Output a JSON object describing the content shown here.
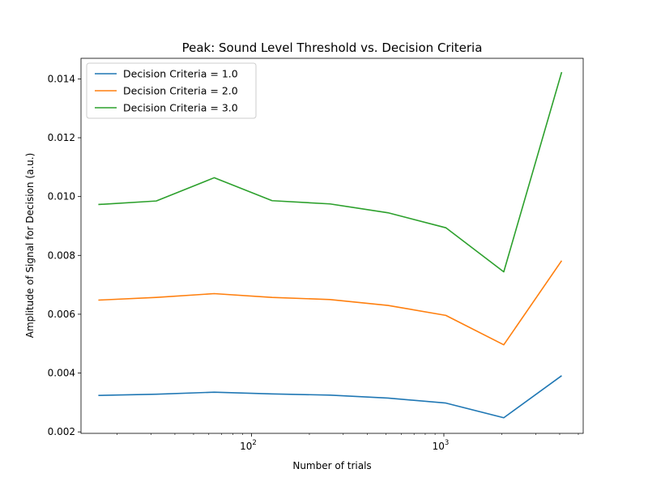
{
  "chart_data": {
    "type": "line",
    "title": "Peak: Sound Level Threshold vs. Decision Criteria",
    "xlabel": "Number of trials",
    "ylabel": "Amplitude of Signal for Decision (a.u.)",
    "xscale": "log",
    "xlim": [
      13,
      5300
    ],
    "ylim": [
      0.00195,
      0.0147
    ],
    "x": [
      16,
      32,
      64,
      128,
      256,
      512,
      1024,
      2048,
      4096
    ],
    "x_ticks": [
      {
        "value": 100,
        "base": "10",
        "exp": "2"
      },
      {
        "value": 1000,
        "base": "10",
        "exp": "3"
      }
    ],
    "y_ticks": [
      0.002,
      0.004,
      0.006,
      0.008,
      0.01,
      0.012,
      0.014
    ],
    "y_tick_labels": [
      "0.002",
      "0.004",
      "0.006",
      "0.008",
      "0.010",
      "0.012",
      "0.014"
    ],
    "series": [
      {
        "name": "Decision Criteria = 1.0",
        "color": "#1f77b4",
        "values": [
          0.00324,
          0.00328,
          0.00335,
          0.00329,
          0.00325,
          0.00315,
          0.00298,
          0.00248,
          0.00391
        ]
      },
      {
        "name": "Decision Criteria = 2.0",
        "color": "#ff7f0e",
        "values": [
          0.00648,
          0.00657,
          0.0067,
          0.00657,
          0.0065,
          0.0063,
          0.00596,
          0.00496,
          0.00782
        ]
      },
      {
        "name": "Decision Criteria = 3.0",
        "color": "#2ca02c",
        "values": [
          0.00973,
          0.00985,
          0.01064,
          0.00986,
          0.00975,
          0.00945,
          0.00894,
          0.00744,
          0.01423
        ]
      }
    ],
    "legend_position": "top-left",
    "grid": false
  }
}
